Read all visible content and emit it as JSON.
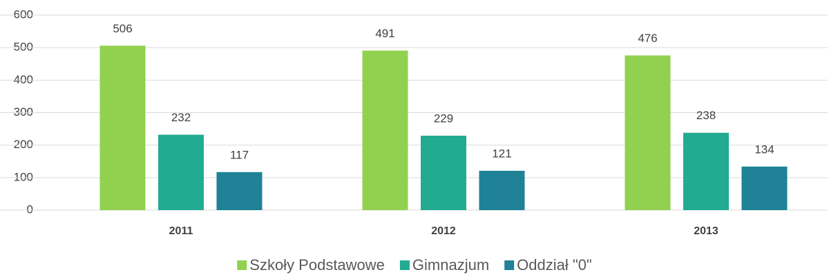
{
  "chart_data": {
    "type": "bar",
    "categories": [
      "2011",
      "2012",
      "2013"
    ],
    "series": [
      {
        "name": "Szkoły Podstawowe",
        "color": "#92d050",
        "values": [
          506,
          491,
          476
        ]
      },
      {
        "name": "Gimnazjum",
        "color": "#22ab90",
        "values": [
          232,
          229,
          238
        ]
      },
      {
        "name": "Oddział \"0\"",
        "color": "#1f8296",
        "values": [
          117,
          121,
          134
        ]
      }
    ],
    "ylim": [
      0,
      600
    ],
    "yticks": [
      0,
      100,
      200,
      300,
      400,
      500,
      600
    ],
    "grid": true,
    "legend": "bottom"
  }
}
